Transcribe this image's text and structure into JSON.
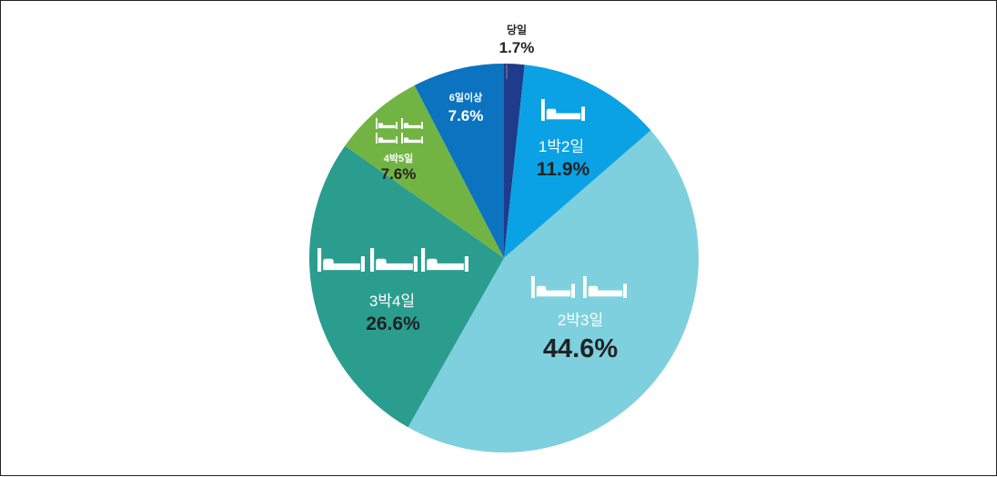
{
  "chart_data": {
    "type": "pie",
    "title": "",
    "slices": [
      {
        "label": "당일",
        "value": 1.7,
        "display": "1.7%",
        "color": "#1f3b8c",
        "beds": 0
      },
      {
        "label": "1박2일",
        "value": 11.9,
        "display": "11.9%",
        "color": "#0aa2e4",
        "beds": 1
      },
      {
        "label": "2박3일",
        "value": 44.6,
        "display": "44.6%",
        "color": "#7ed0de",
        "beds": 2
      },
      {
        "label": "3박4일",
        "value": 26.6,
        "display": "26.6%",
        "color": "#2a9d8f",
        "beds": 3
      },
      {
        "label": "4박5일",
        "value": 7.6,
        "display": "7.6%",
        "color": "#72b443",
        "beds": 4
      },
      {
        "label": "6일이상",
        "value": 7.6,
        "display": "7.6%",
        "color": "#0b73bf",
        "beds": 0
      }
    ]
  }
}
